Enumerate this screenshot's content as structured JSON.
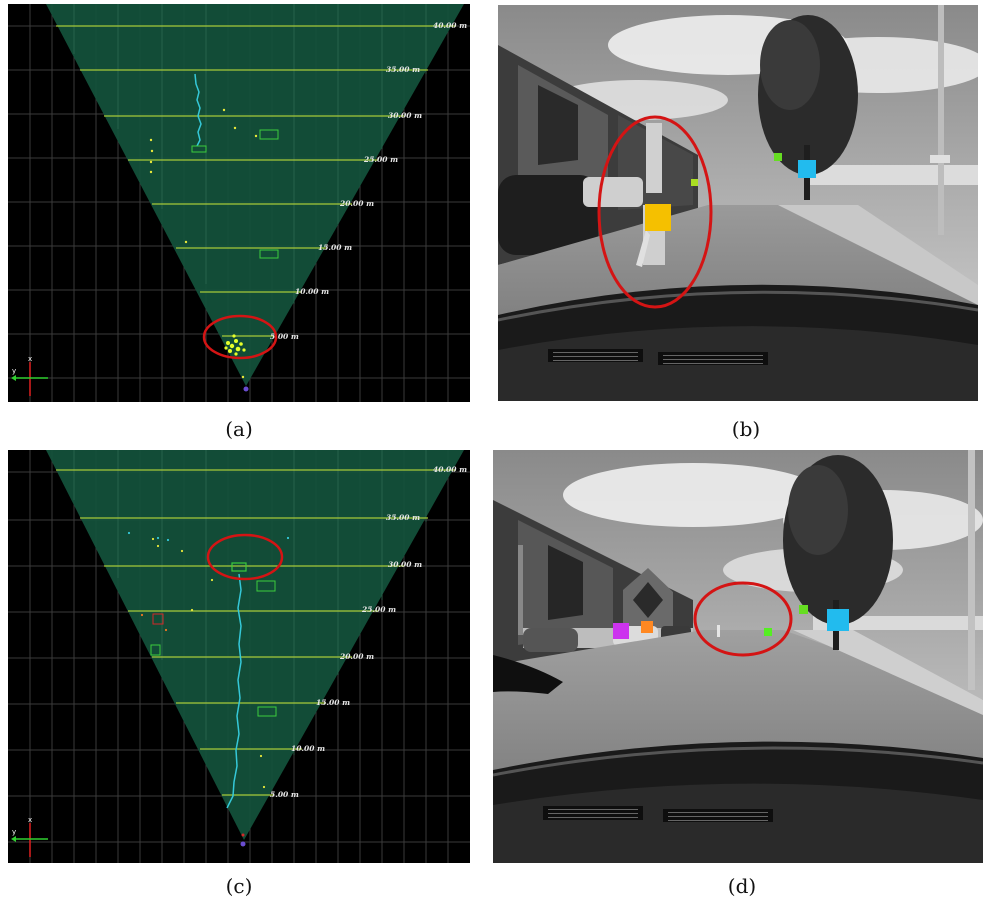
{
  "figure": {
    "panels": [
      {
        "id": "a",
        "caption": "(a)",
        "type": "radar-bev",
        "highlight": "near-target"
      },
      {
        "id": "b",
        "caption": "(b)",
        "type": "camera",
        "highlight": "pedestrian-near"
      },
      {
        "id": "c",
        "caption": "(c)",
        "type": "radar-bev",
        "highlight": "far-target"
      },
      {
        "id": "d",
        "caption": "(d)",
        "type": "camera",
        "highlight": "pedestrian-far"
      }
    ],
    "range_labels": [
      "5.00 m",
      "10.00 m",
      "15.00 m",
      "20.00 m",
      "25.00 m",
      "30.00 m",
      "35.00 m",
      "40.00 m"
    ],
    "axis_labels": {
      "x": "x",
      "y": "y"
    },
    "colors": {
      "grid": "#3a3a3a",
      "fov_fill": "#14523c",
      "range_line": "#a6c93a",
      "track": "#35c8d8",
      "highlight": "#d41414",
      "box": "#3ccc3c",
      "detection": "#e8e83a",
      "marker_yellow": "#f5c000",
      "marker_cyan": "#22bbee",
      "marker_green": "#66dd22",
      "marker_purple": "#cc33ee",
      "marker_orange": "#ff8822"
    }
  }
}
